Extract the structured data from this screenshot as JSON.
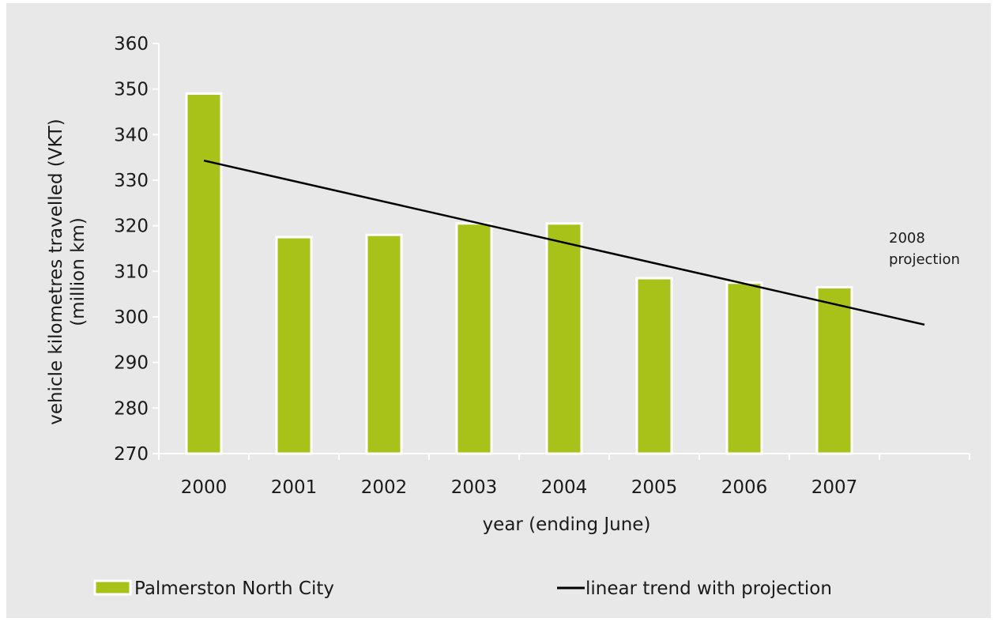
{
  "chart_data": {
    "type": "bar",
    "categories": [
      "2000",
      "2001",
      "2002",
      "2003",
      "2004",
      "2005",
      "2006",
      "2007"
    ],
    "series": [
      {
        "name": "Palmerston North City",
        "values": [
          349,
          317.5,
          318,
          320.5,
          320.5,
          308.5,
          307.5,
          306.5
        ]
      }
    ],
    "trend": {
      "name": "linear trend with projection",
      "x": [
        2000,
        2008
      ],
      "y": [
        334.3,
        298.3
      ]
    },
    "annotation": {
      "line1": "2008",
      "line2": "projection"
    },
    "xlabel": "year (ending June)",
    "ylabel_line1": "vehicle kilometres travelled (VKT)",
    "ylabel_line2": "(million km)",
    "ylim": [
      270,
      360
    ],
    "yticks": [
      270,
      280,
      290,
      300,
      310,
      320,
      330,
      340,
      350,
      360
    ],
    "x_slots": 9,
    "grid": false,
    "legend_position": "bottom",
    "colors": {
      "bar": "#a8c21a",
      "bar_edge": "#ffffff",
      "trend": "#000000",
      "axis": "#ffffff",
      "background": "#e8e8e8"
    }
  }
}
